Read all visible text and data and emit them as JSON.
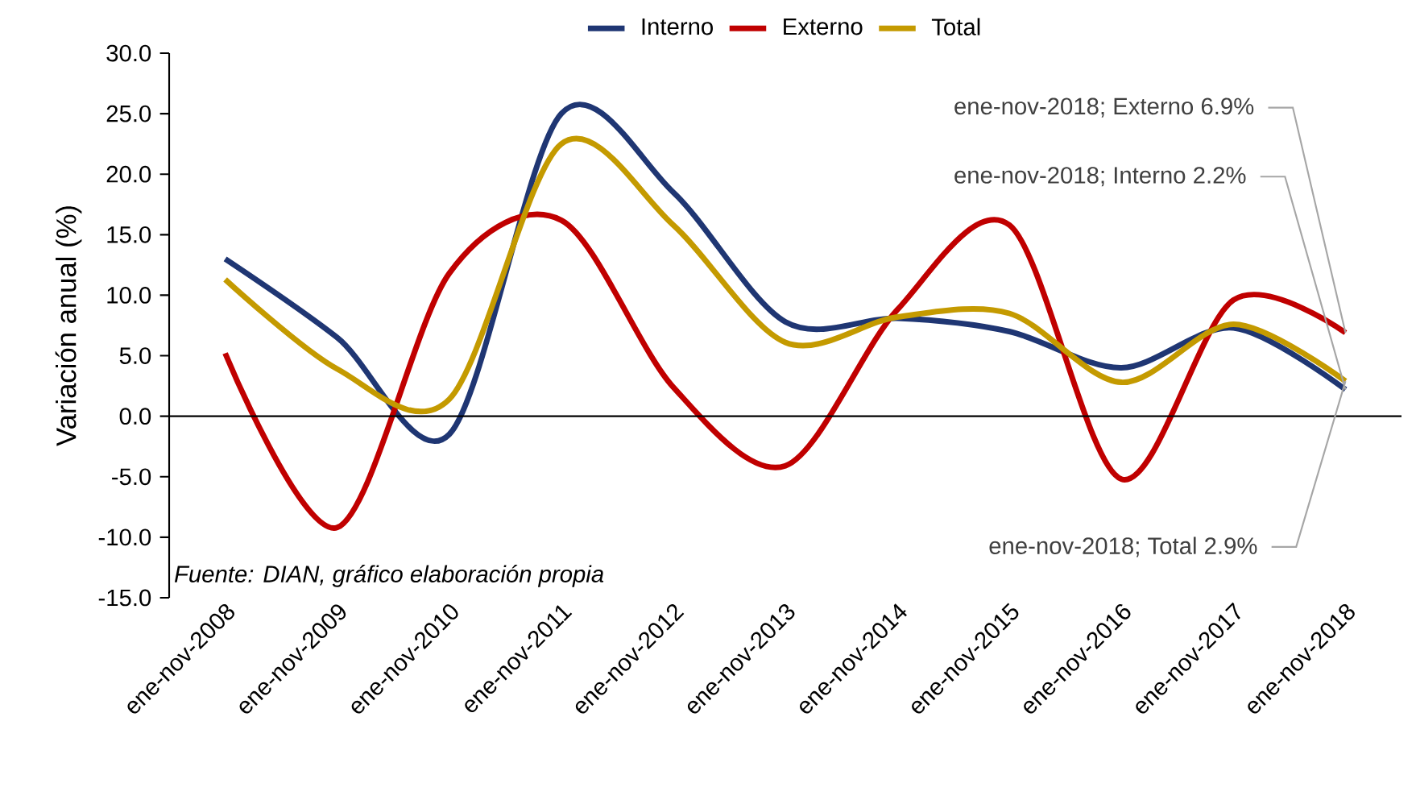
{
  "chart_data": {
    "type": "line",
    "ylabel": "Variación anual (%)",
    "categories": [
      "ene-nov-2008",
      "ene-nov-2009",
      "ene-nov-2010",
      "ene-nov-2011",
      "ene-nov-2012",
      "ene-nov-2013",
      "ene-nov-2014",
      "ene-nov-2015",
      "ene-nov-2016",
      "ene-nov-2017",
      "ene-nov-2018"
    ],
    "series": [
      {
        "name": "Interno",
        "color": "#1f3673",
        "values": [
          13.0,
          6.5,
          -1.5,
          25.0,
          18.5,
          7.8,
          8.1,
          7.0,
          4.0,
          7.3,
          2.2
        ]
      },
      {
        "name": "Externo",
        "color": "#c00000",
        "values": [
          5.2,
          -9.2,
          11.8,
          16.2,
          2.4,
          -4.1,
          8.8,
          15.8,
          -5.2,
          9.6,
          6.9
        ]
      },
      {
        "name": "Total",
        "color": "#c49a00",
        "values": [
          11.3,
          3.9,
          1.4,
          22.5,
          15.8,
          6.1,
          8.2,
          8.5,
          2.8,
          7.6,
          2.9
        ]
      }
    ],
    "ylim": [
      -15,
      30
    ],
    "yticks": [
      {
        "value": -15,
        "label": "-15.0"
      },
      {
        "value": -10,
        "label": "-10.0"
      },
      {
        "value": -5,
        "label": "-5.0"
      },
      {
        "value": 0,
        "label": "0.0"
      },
      {
        "value": 5,
        "label": "5.0"
      },
      {
        "value": 10,
        "label": "10.0"
      },
      {
        "value": 15,
        "label": "15.0"
      },
      {
        "value": 20,
        "label": "20.0"
      },
      {
        "value": 25,
        "label": "25.0"
      },
      {
        "value": 30,
        "label": "30.0"
      }
    ],
    "annotations": [
      {
        "text": "ene-nov-2018; Externo 6.9%",
        "x": "ene-nov-2018",
        "y": 6.9
      },
      {
        "text": "ene-nov-2018; Interno 2.2%",
        "x": "ene-nov-2018",
        "y": 2.2
      },
      {
        "text": "ene-nov-2018; Total 2.9%",
        "x": "ene-nov-2018",
        "y": 2.9
      },
      "*Fuente: DIAN, gráfico elaboración propia*"
    ],
    "legend": "top",
    "marker": "none",
    "line_style": "solid"
  }
}
